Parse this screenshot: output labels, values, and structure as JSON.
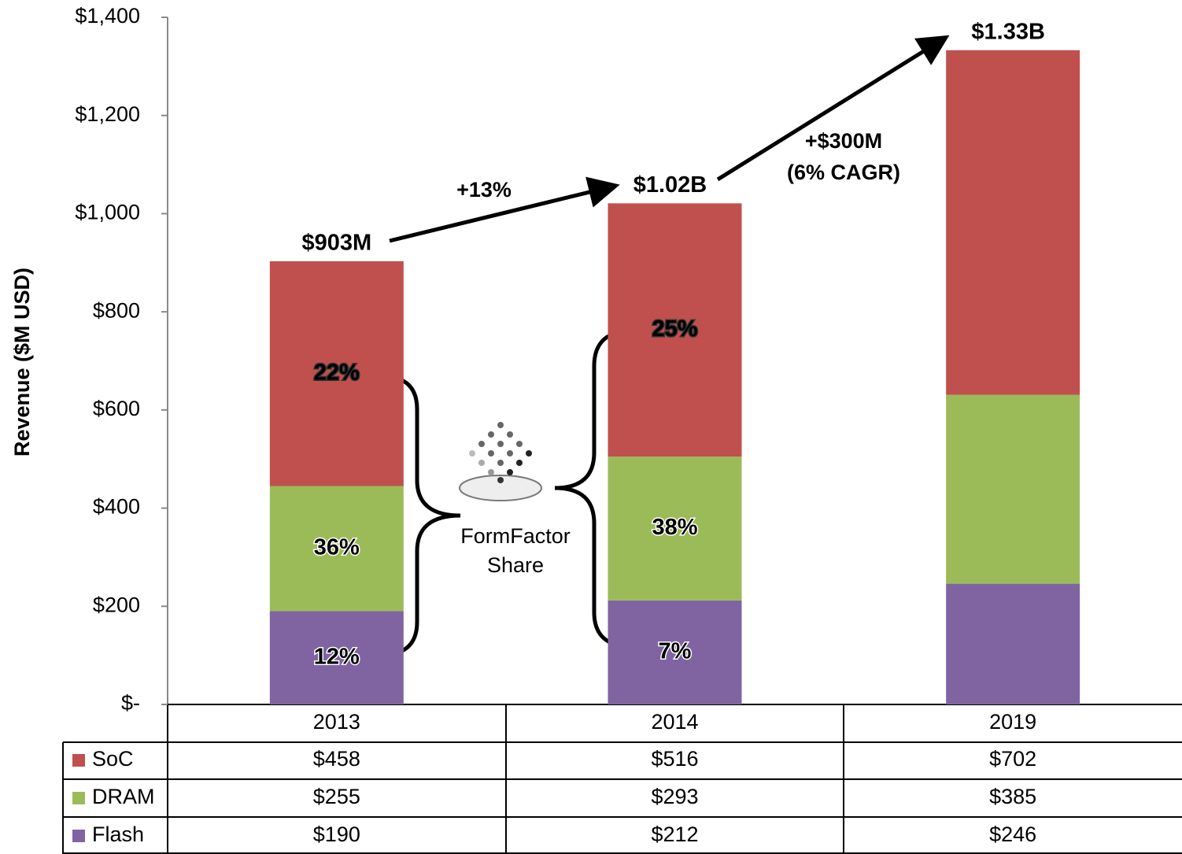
{
  "chart_data": {
    "type": "stacked_bar",
    "y_axis_label": "Revenue ($M USD)",
    "categories": [
      "2013",
      "2014",
      "2019"
    ],
    "series": [
      {
        "name": "SoC",
        "color": "#c0504d",
        "values": [
          458,
          516,
          702
        ],
        "value_labels": [
          "$458",
          "$516",
          "$702"
        ],
        "share_labels": [
          "22%",
          "25%",
          null
        ]
      },
      {
        "name": "DRAM",
        "color": "#9bbb59",
        "values": [
          255,
          293,
          385
        ],
        "value_labels": [
          "$255",
          "$293",
          "$385"
        ],
        "share_labels": [
          "36%",
          "38%",
          null
        ]
      },
      {
        "name": "Flash",
        "color": "#8064a2",
        "values": [
          190,
          212,
          246
        ],
        "value_labels": [
          "$190",
          "$212",
          "$246"
        ],
        "share_labels": [
          "12%",
          "7%",
          null
        ]
      }
    ],
    "ylim": [
      0,
      1400
    ],
    "yticks": [
      {
        "value": 0,
        "label": "$-"
      },
      {
        "value": 200,
        "label": "$200"
      },
      {
        "value": 400,
        "label": "$400"
      },
      {
        "value": 600,
        "label": "$600"
      },
      {
        "value": 800,
        "label": "$800"
      },
      {
        "value": 1000,
        "label": "$1,000"
      },
      {
        "value": 1200,
        "label": "$1,200"
      },
      {
        "value": 1400,
        "label": "$1,400"
      }
    ],
    "grid": false,
    "annotations": {
      "totals": [
        "$903M",
        "$1.02B",
        "$1.33B"
      ],
      "growth": [
        "+13%",
        "+$300M",
        "(6% CAGR)"
      ],
      "share_title": [
        "FormFactor",
        "Share"
      ]
    }
  }
}
